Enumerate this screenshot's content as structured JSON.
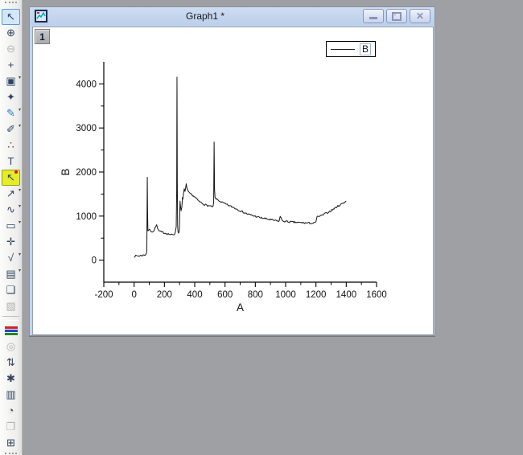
{
  "window": {
    "title": "Graph1 *",
    "icon": "graph-window-icon",
    "buttons": [
      {
        "name": "minimize",
        "icon": "minimize-icon"
      },
      {
        "name": "restore",
        "icon": "restore-icon"
      },
      {
        "name": "close",
        "icon": "close-icon"
      }
    ]
  },
  "layer_badge": "1",
  "legend": {
    "label": "B"
  },
  "colors": {
    "app_background": "#9fa0a4",
    "titlebar": "#c3d5ee",
    "highlight_tool": "#e5ed29",
    "selected_tool": "#d3e7fb",
    "curve": "#151515"
  },
  "toolbar": {
    "items": [
      {
        "type": "grip"
      },
      {
        "name": "pointer-tool",
        "icon": "pointer-icon",
        "glyph": "↖",
        "state": "selected"
      },
      {
        "name": "zoom-in-tool",
        "icon": "zoom-in-icon",
        "glyph": "⊕"
      },
      {
        "name": "zoom-out-tool",
        "icon": "zoom-out-icon",
        "glyph": "⊖",
        "state": "disabled"
      },
      {
        "name": "screen-reader-tool",
        "icon": "crosshair-icon",
        "glyph": "+"
      },
      {
        "name": "zoom-region-tool",
        "icon": "region-zoom-icon",
        "glyph": "▣",
        "dropdown": true
      },
      {
        "name": "data-selector-tool",
        "icon": "data-selector-icon",
        "glyph": "✦"
      },
      {
        "name": "mask-range-tool",
        "icon": "mask-brush-icon",
        "glyph": "✎",
        "dropdown": true,
        "color": "#1b7fd4"
      },
      {
        "name": "unmask-range-tool",
        "icon": "unmask-icon",
        "glyph": "✐",
        "dropdown": true
      },
      {
        "name": "data-reader-tool",
        "icon": "dots-icon",
        "glyph": "∴"
      },
      {
        "name": "text-tool",
        "icon": "text-tool-icon",
        "glyph": "T"
      },
      {
        "name": "annotation-tool",
        "icon": "annotation-icon",
        "glyph": "↖",
        "state": "highlighted",
        "badge": true
      },
      {
        "name": "arrow-tool",
        "icon": "arrow-icon",
        "glyph": "↗",
        "dropdown": true
      },
      {
        "name": "curve-draw-tool",
        "icon": "curve-icon",
        "glyph": "∿",
        "dropdown": true
      },
      {
        "name": "rectangle-tool",
        "icon": "rectangle-icon",
        "glyph": "▭",
        "dropdown": true
      },
      {
        "name": "pan-tool",
        "icon": "pan-hand-icon",
        "glyph": "✛"
      },
      {
        "name": "equation-tool",
        "icon": "equation-icon",
        "glyph": "√",
        "dropdown": true
      },
      {
        "name": "insert-graph-tool",
        "icon": "insert-graph-icon",
        "glyph": "▤",
        "dropdown": true
      },
      {
        "name": "paste-object-tool",
        "icon": "paste-object-icon",
        "glyph": "❏"
      },
      {
        "name": "rotate-3d-tool",
        "icon": "cube-3d-icon",
        "glyph": "▧",
        "state": "disabled"
      },
      {
        "type": "separator"
      },
      {
        "name": "color-palette-tool",
        "icon": "color-stripes-icon",
        "special": "stripes",
        "stripe_colors": [
          "#d42222",
          "#2244cc",
          "#1f8a22"
        ]
      },
      {
        "name": "highlight-tool",
        "icon": "circle-icon",
        "glyph": "◎",
        "state": "disabled"
      },
      {
        "name": "exchange-xy-tool",
        "icon": "swap-axes-icon",
        "glyph": "⇅"
      },
      {
        "name": "new-legend-tool",
        "icon": "star-icon",
        "glyph": "✱"
      },
      {
        "name": "layer-contents-tool",
        "icon": "columns-icon",
        "glyph": "▥"
      },
      {
        "name": "rescale-tool",
        "icon": "clock-icon",
        "glyph": "◔",
        "color": "#6e3a50"
      },
      {
        "name": "duplicate-window-tool",
        "icon": "folder-icon",
        "glyph": "❐",
        "state": "disabled"
      },
      {
        "name": "worksheet-tool",
        "icon": "table-grid-icon",
        "glyph": "⊞"
      },
      {
        "type": "grip"
      }
    ]
  },
  "chart_data": {
    "type": "line",
    "title": "",
    "xlabel": "A",
    "ylabel": "B",
    "legend_entries": [
      "B"
    ],
    "legend_position": "top-right",
    "grid": false,
    "xlim": [
      -200,
      1600
    ],
    "ylim": [
      -500,
      4500
    ],
    "x_major_ticks": [
      -200,
      0,
      200,
      400,
      600,
      800,
      1000,
      1200,
      1400,
      1600
    ],
    "y_major_ticks": [
      0,
      1000,
      2000,
      3000,
      4000
    ],
    "x_minor_step": 100,
    "y_minor_step": 500,
    "series": [
      {
        "name": "B",
        "color": "#151515",
        "noise_amplitude": 20,
        "noise_seed": 7,
        "anchor_points": [
          [
            0,
            80
          ],
          [
            15,
            100
          ],
          [
            30,
            95
          ],
          [
            45,
            105
          ],
          [
            60,
            110
          ],
          [
            72,
            120
          ],
          [
            80,
            150
          ],
          [
            84,
            210
          ],
          [
            87,
            1880
          ],
          [
            89,
            1100
          ],
          [
            91,
            660
          ],
          [
            95,
            680
          ],
          [
            102,
            700
          ],
          [
            110,
            665
          ],
          [
            120,
            650
          ],
          [
            132,
            665
          ],
          [
            143,
            780
          ],
          [
            149,
            800
          ],
          [
            154,
            730
          ],
          [
            163,
            665
          ],
          [
            175,
            645
          ],
          [
            190,
            630
          ],
          [
            205,
            615
          ],
          [
            220,
            600
          ],
          [
            235,
            585
          ],
          [
            248,
            575
          ],
          [
            258,
            570
          ],
          [
            266,
            585
          ],
          [
            272,
            640
          ],
          [
            278,
            760
          ],
          [
            281,
            1600
          ],
          [
            283,
            4150
          ],
          [
            285,
            1900
          ],
          [
            287,
            800
          ],
          [
            290,
            640
          ],
          [
            294,
            615
          ],
          [
            299,
            680
          ],
          [
            303,
            1340
          ],
          [
            306,
            1220
          ],
          [
            310,
            1120
          ],
          [
            315,
            1200
          ],
          [
            319,
            1420
          ],
          [
            322,
            1380
          ],
          [
            326,
            1520
          ],
          [
            331,
            1620
          ],
          [
            336,
            1560
          ],
          [
            340,
            1640
          ],
          [
            344,
            1730
          ],
          [
            348,
            1640
          ],
          [
            353,
            1600
          ],
          [
            358,
            1560
          ],
          [
            365,
            1530
          ],
          [
            372,
            1510
          ],
          [
            380,
            1490
          ],
          [
            390,
            1460
          ],
          [
            400,
            1430
          ],
          [
            410,
            1400
          ],
          [
            420,
            1360
          ],
          [
            430,
            1330
          ],
          [
            440,
            1310
          ],
          [
            450,
            1290
          ],
          [
            460,
            1270
          ],
          [
            470,
            1255
          ],
          [
            480,
            1245
          ],
          [
            490,
            1235
          ],
          [
            500,
            1225
          ],
          [
            508,
            1215
          ],
          [
            515,
            1210
          ],
          [
            521,
            1220
          ],
          [
            525,
            1300
          ],
          [
            528,
            2680
          ],
          [
            531,
            1600
          ],
          [
            534,
            1420
          ],
          [
            540,
            1390
          ],
          [
            550,
            1370
          ],
          [
            562,
            1345
          ],
          [
            575,
            1320
          ],
          [
            590,
            1295
          ],
          [
            605,
            1270
          ],
          [
            620,
            1245
          ],
          [
            635,
            1225
          ],
          [
            650,
            1205
          ],
          [
            665,
            1180
          ],
          [
            680,
            1155
          ],
          [
            695,
            1130
          ],
          [
            710,
            1105
          ],
          [
            725,
            1080
          ],
          [
            740,
            1060
          ],
          [
            755,
            1040
          ],
          [
            770,
            1025
          ],
          [
            785,
            1010
          ],
          [
            800,
            995
          ],
          [
            815,
            980
          ],
          [
            830,
            965
          ],
          [
            845,
            955
          ],
          [
            860,
            945
          ],
          [
            875,
            935
          ],
          [
            890,
            925
          ],
          [
            905,
            915
          ],
          [
            920,
            905
          ],
          [
            935,
            895
          ],
          [
            948,
            885
          ],
          [
            958,
            890
          ],
          [
            964,
            995
          ],
          [
            970,
            960
          ],
          [
            977,
            900
          ],
          [
            985,
            885
          ],
          [
            1000,
            880
          ],
          [
            1015,
            872
          ],
          [
            1030,
            868
          ],
          [
            1045,
            862
          ],
          [
            1060,
            858
          ],
          [
            1075,
            855
          ],
          [
            1090,
            852
          ],
          [
            1105,
            850
          ],
          [
            1120,
            846
          ],
          [
            1135,
            843
          ],
          [
            1150,
            842
          ],
          [
            1165,
            838
          ],
          [
            1180,
            836
          ],
          [
            1192,
            840
          ],
          [
            1200,
            870
          ],
          [
            1208,
            980
          ],
          [
            1216,
            1000
          ],
          [
            1225,
            995
          ],
          [
            1235,
            1010
          ],
          [
            1248,
            1030
          ],
          [
            1262,
            1055
          ],
          [
            1276,
            1080
          ],
          [
            1290,
            1105
          ],
          [
            1305,
            1135
          ],
          [
            1320,
            1170
          ],
          [
            1335,
            1205
          ],
          [
            1350,
            1235
          ],
          [
            1365,
            1265
          ],
          [
            1378,
            1295
          ],
          [
            1388,
            1315
          ],
          [
            1396,
            1335
          ],
          [
            1400,
            1340
          ]
        ]
      }
    ]
  }
}
